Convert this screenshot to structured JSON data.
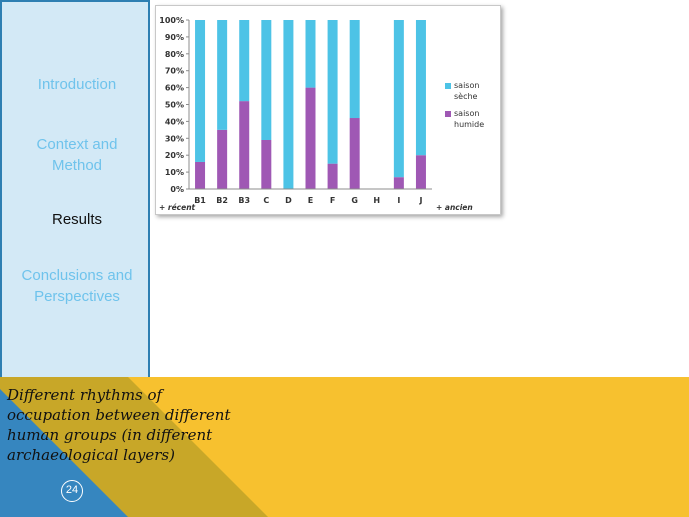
{
  "nav": {
    "items": [
      {
        "label": "Introduction",
        "active": false
      },
      {
        "label": "Context and Method",
        "active": false
      },
      {
        "label": "Results",
        "active": true
      },
      {
        "label": "Conclusions and Perspectives",
        "active": false
      }
    ]
  },
  "caption": "Different rhythms of occupation between different human groups (in different archaeological layers)",
  "page_number": "24",
  "colors": {
    "nav_bg": "#d3e9f6",
    "nav_border": "#2e7fb2",
    "nav_text": "#6fc3ec",
    "band_yellow": "#f7c12f",
    "band_olive": "#c8a728",
    "band_blue": "#3686bf",
    "series_dry": "#4dc3e6",
    "series_wet": "#9f58b4"
  },
  "chart_data": {
    "type": "bar",
    "stacked": true,
    "categories": [
      "B1",
      "B2",
      "B3",
      "C",
      "D",
      "E",
      "F",
      "G",
      "H",
      "I",
      "J"
    ],
    "series": [
      {
        "name": "saison humide",
        "color": "#9f58b4",
        "values": [
          16,
          35,
          52,
          29,
          0,
          60,
          15,
          42,
          null,
          7,
          20
        ]
      },
      {
        "name": "saison sèche",
        "color": "#4dc3e6",
        "values": [
          84,
          65,
          48,
          71,
          100,
          40,
          85,
          58,
          null,
          93,
          80
        ]
      }
    ],
    "yticks": [
      "0%",
      "10%",
      "20%",
      "30%",
      "40%",
      "50%",
      "60%",
      "70%",
      "80%",
      "90%",
      "100%"
    ],
    "ylim": [
      0,
      100
    ],
    "legend": [
      "saison sèche",
      "saison humide"
    ],
    "legend_position": "right",
    "annotation_left": "+ récent",
    "annotation_right": "+ ancien",
    "grid": false
  }
}
